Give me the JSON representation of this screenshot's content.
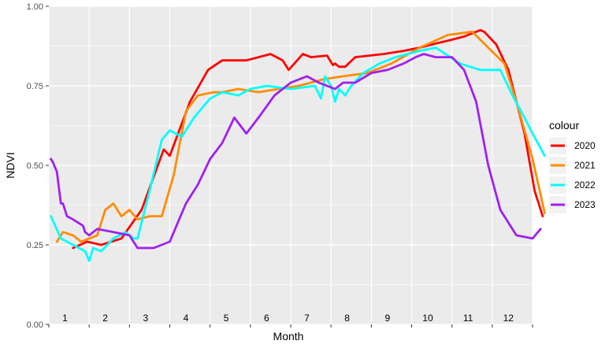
{
  "chart_data": {
    "type": "line",
    "xlabel": "Month",
    "ylabel": "NDVI",
    "ylim": [
      0,
      1
    ],
    "xlim": [
      0,
      12
    ],
    "y_ticks": [
      "0.00",
      "0.25",
      "0.50",
      "0.75",
      "1.00"
    ],
    "y_tick_values": [
      0,
      0.25,
      0.5,
      0.75,
      1.0
    ],
    "month_labels": [
      "1",
      "2",
      "3",
      "4",
      "5",
      "6",
      "7",
      "8",
      "9",
      "10",
      "11",
      "12"
    ],
    "grid": true,
    "legend_position": "right",
    "legend_title": "colour",
    "background": "#ebebeb",
    "series": [
      {
        "name": "2020",
        "color": "#ff0000",
        "x": [
          0.6,
          0.95,
          1.3,
          1.8,
          2.3,
          2.85,
          3.0,
          3.5,
          3.95,
          4.3,
          4.9,
          5.5,
          5.8,
          5.95,
          6.3,
          6.5,
          6.9,
          7.05,
          7.1,
          7.2,
          7.35,
          7.6,
          8.3,
          8.8,
          9.2,
          9.5,
          10.0,
          10.3,
          10.5,
          10.7,
          10.8,
          11.1,
          11.4,
          11.8,
          12.05,
          12.25
        ],
        "y": [
          0.24,
          0.26,
          0.25,
          0.27,
          0.36,
          0.55,
          0.53,
          0.7,
          0.8,
          0.83,
          0.83,
          0.85,
          0.83,
          0.8,
          0.85,
          0.84,
          0.845,
          0.815,
          0.82,
          0.81,
          0.81,
          0.84,
          0.85,
          0.86,
          0.87,
          0.88,
          0.895,
          0.905,
          0.915,
          0.925,
          0.92,
          0.88,
          0.8,
          0.6,
          0.42,
          0.34
        ]
      },
      {
        "name": "2021",
        "color": "#ff8c00",
        "x": [
          0.2,
          0.35,
          0.6,
          0.8,
          1.0,
          1.2,
          1.4,
          1.6,
          1.8,
          2.0,
          2.2,
          2.5,
          2.8,
          3.1,
          3.4,
          3.7,
          4.1,
          4.3,
          4.7,
          5.2,
          5.7,
          6.2,
          6.8,
          7.3,
          7.9,
          8.5,
          9.2,
          9.9,
          10.5,
          10.9,
          11.3,
          11.6,
          12.0,
          12.3
        ],
        "y": [
          0.26,
          0.29,
          0.28,
          0.26,
          0.27,
          0.28,
          0.36,
          0.38,
          0.34,
          0.36,
          0.33,
          0.34,
          0.34,
          0.47,
          0.67,
          0.72,
          0.73,
          0.73,
          0.74,
          0.73,
          0.74,
          0.75,
          0.77,
          0.78,
          0.79,
          0.82,
          0.87,
          0.91,
          0.92,
          0.87,
          0.82,
          0.7,
          0.52,
          0.35
        ]
      },
      {
        "name": "2022",
        "color": "#00ffff",
        "x": [
          0.05,
          0.3,
          0.6,
          0.9,
          1.0,
          1.1,
          1.3,
          1.6,
          1.9,
          2.1,
          2.2,
          2.5,
          2.8,
          3.0,
          3.3,
          3.6,
          4.0,
          4.3,
          4.7,
          5.0,
          5.4,
          6.0,
          6.6,
          6.75,
          6.85,
          7.0,
          7.1,
          7.2,
          7.35,
          7.5,
          7.8,
          8.2,
          8.6,
          9.2,
          9.6,
          10.2,
          10.7,
          11.2,
          11.5,
          11.8,
          12.0,
          12.3
        ],
        "y": [
          0.34,
          0.27,
          0.25,
          0.23,
          0.2,
          0.24,
          0.23,
          0.27,
          0.29,
          0.27,
          0.27,
          0.42,
          0.58,
          0.61,
          0.59,
          0.65,
          0.71,
          0.73,
          0.72,
          0.74,
          0.75,
          0.74,
          0.75,
          0.71,
          0.78,
          0.75,
          0.7,
          0.74,
          0.72,
          0.75,
          0.79,
          0.82,
          0.84,
          0.86,
          0.87,
          0.82,
          0.8,
          0.8,
          0.72,
          0.65,
          0.6,
          0.53
        ]
      },
      {
        "name": "2023",
        "color": "#a020f0",
        "x": [
          0.05,
          0.1,
          0.2,
          0.3,
          0.35,
          0.45,
          0.6,
          0.85,
          0.9,
          1.0,
          1.2,
          1.6,
          2.0,
          2.2,
          2.6,
          3.0,
          3.2,
          3.4,
          3.7,
          4.0,
          4.3,
          4.6,
          4.9,
          5.2,
          5.6,
          6.0,
          6.4,
          6.7,
          6.9,
          7.1,
          7.3,
          7.6,
          8.0,
          8.4,
          8.8,
          9.1,
          9.3,
          9.6,
          10.0,
          10.3,
          10.6,
          10.9,
          11.2,
          11.6,
          12.0,
          12.2
        ],
        "y": [
          0.52,
          0.51,
          0.48,
          0.38,
          0.38,
          0.34,
          0.33,
          0.31,
          0.29,
          0.28,
          0.3,
          0.29,
          0.28,
          0.24,
          0.24,
          0.26,
          0.32,
          0.38,
          0.44,
          0.52,
          0.57,
          0.65,
          0.6,
          0.65,
          0.72,
          0.76,
          0.78,
          0.76,
          0.75,
          0.74,
          0.76,
          0.76,
          0.79,
          0.8,
          0.82,
          0.84,
          0.85,
          0.84,
          0.84,
          0.8,
          0.7,
          0.5,
          0.36,
          0.28,
          0.27,
          0.3
        ]
      }
    ]
  }
}
